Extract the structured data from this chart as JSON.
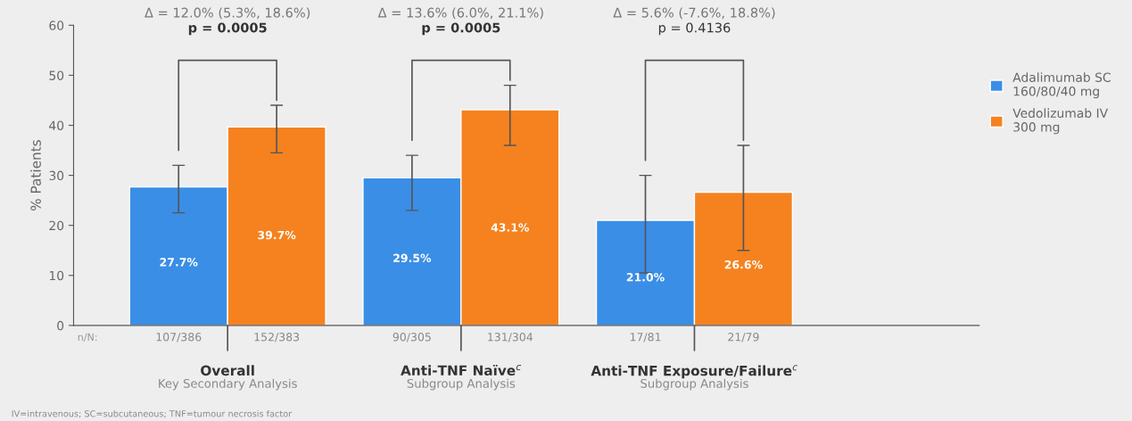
{
  "chart_data": {
    "type": "bar",
    "categories": [
      "Overall",
      "Anti-TNF Naïve$^{c}$",
      "Anti-TNF Exposure/Failure$^{c}$"
    ],
    "ylabel": "% Patients",
    "ylim": [
      0,
      60
    ],
    "yticks": [
      0,
      10,
      20,
      30,
      40,
      50,
      60
    ],
    "series": [
      {
        "name": "Adalimumab SC\n160/80/40 mg",
        "color": "#3a8ee6",
        "values": [
          27.7,
          29.5,
          21.0
        ],
        "value_labels": [
          "27.7%",
          "29.5%",
          "21.0%"
        ],
        "errors": [
          [
            22.5,
            32
          ],
          [
            23,
            34
          ],
          [
            10.5,
            30
          ]
        ]
      },
      {
        "name": "Vedolizumab IV\n300 mg",
        "color": "#f5821f",
        "values": [
          39.7,
          43.1,
          26.6
        ],
        "value_labels": [
          "39.7%",
          "43.1%",
          "26.6%"
        ],
        "errors": [
          [
            34.5,
            44
          ],
          [
            36,
            48
          ],
          [
            15,
            36
          ]
        ]
      }
    ],
    "annotations": [
      "Key Secondary Analysis",
      "Subgroup Analysis",
      "Subgroup Analysis",
      "107/386",
      "152/383",
      "90/305",
      "131/304",
      "17/81",
      "21/79",
      "n/N:",
      "Δ = 12.0% (5.3%, 18.6%)",
      "Δ = 13.6% (6.0%, 21.1%)",
      "Δ = 5.6% (-7.6%, 18.8%)",
      "p = 0.0005",
      "p = 0.0005",
      "p = 0.4136",
      "IV=intravenous; SC=subcutaneous; TNF=tumour necrosis factor"
    ],
    "legend": "right",
    "grid": false
  }
}
